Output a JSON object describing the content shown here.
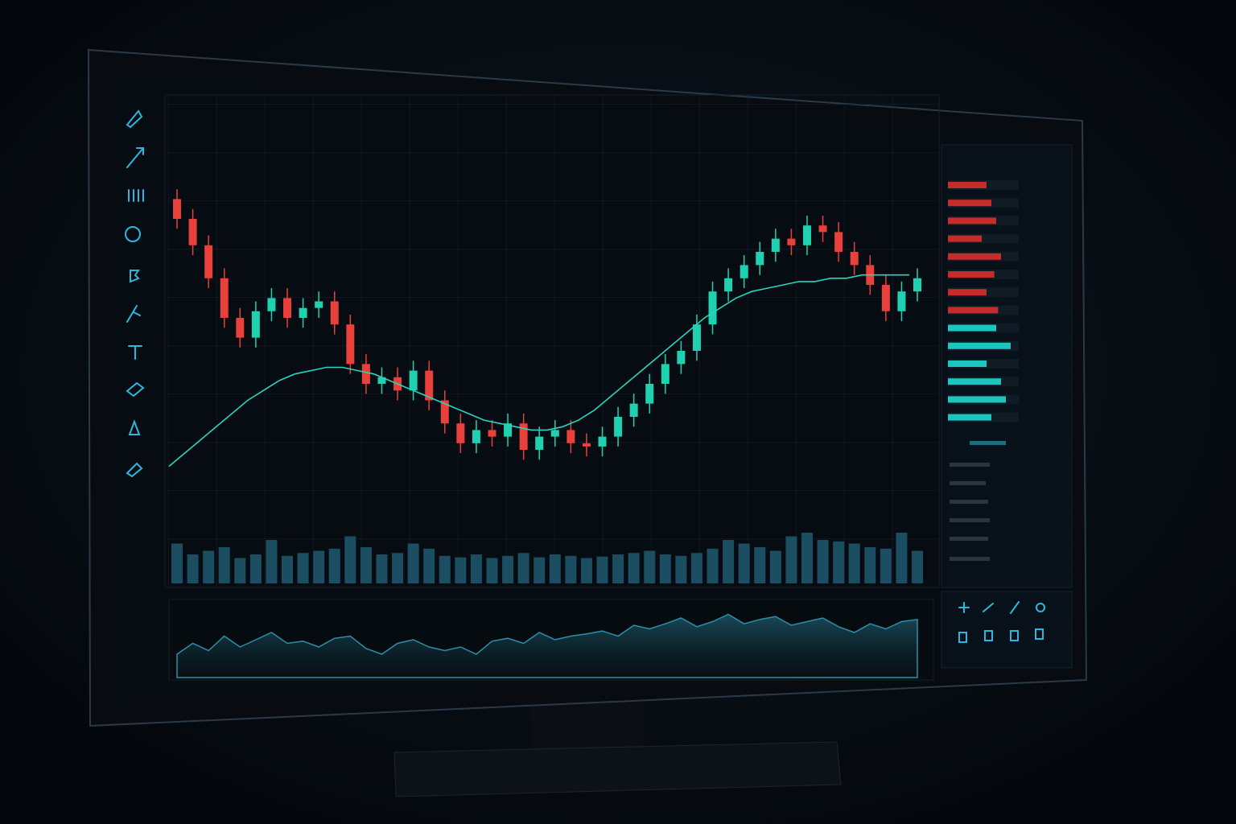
{
  "chart_data": [
    {
      "type": "candlestick",
      "ylim": [
        0,
        100
      ],
      "up_color": "#1fd1b0",
      "down_color": "#e8403a",
      "ma_color": "#2ad4c0",
      "volume_color": "#1d5a6e",
      "open": [
        86,
        80,
        72,
        62,
        50,
        44,
        52,
        56,
        50,
        53,
        55,
        48,
        36,
        30,
        32,
        28,
        34,
        25,
        18,
        12,
        16,
        14,
        18,
        10,
        14,
        16,
        12,
        11,
        14,
        20,
        24,
        30,
        36,
        40,
        48,
        58,
        62,
        66,
        70,
        74,
        72,
        78,
        76,
        70,
        66,
        60,
        52,
        58
      ],
      "high": [
        89,
        83,
        75,
        65,
        53,
        55,
        59,
        59,
        56,
        58,
        58,
        51,
        39,
        35,
        35,
        37,
        37,
        28,
        21,
        19,
        19,
        21,
        21,
        17,
        19,
        19,
        15,
        17,
        23,
        27,
        33,
        39,
        43,
        51,
        61,
        65,
        69,
        73,
        77,
        77,
        81,
        81,
        79,
        73,
        69,
        63,
        61,
        65
      ],
      "low": [
        77,
        69,
        59,
        47,
        41,
        41,
        49,
        47,
        47,
        50,
        45,
        33,
        27,
        27,
        25,
        25,
        22,
        15,
        9,
        9,
        11,
        11,
        7,
        7,
        11,
        9,
        8,
        8,
        11,
        17,
        21,
        27,
        33,
        37,
        45,
        55,
        59,
        63,
        67,
        69,
        69,
        73,
        67,
        63,
        57,
        49,
        49,
        55
      ],
      "close": [
        80,
        72,
        62,
        50,
        44,
        52,
        56,
        50,
        53,
        55,
        48,
        36,
        30,
        32,
        28,
        34,
        25,
        18,
        12,
        16,
        14,
        18,
        10,
        14,
        16,
        12,
        11,
        14,
        20,
        24,
        30,
        36,
        40,
        48,
        58,
        62,
        66,
        70,
        74,
        72,
        78,
        76,
        70,
        66,
        60,
        52,
        58,
        62
      ],
      "ma": [
        5,
        9,
        13,
        17,
        21,
        25,
        28,
        31,
        33,
        34,
        35,
        35,
        34,
        33,
        31,
        29,
        27,
        25,
        23,
        21,
        19,
        18,
        17,
        16,
        16,
        17,
        19,
        22,
        26,
        30,
        34,
        38,
        42,
        46,
        50,
        53,
        56,
        58,
        59,
        60,
        61,
        61,
        62,
        62,
        63,
        63,
        63,
        63
      ],
      "volume": [
        55,
        40,
        45,
        50,
        35,
        40,
        60,
        38,
        42,
        45,
        48,
        65,
        50,
        40,
        42,
        55,
        48,
        38,
        36,
        40,
        35,
        38,
        42,
        36,
        40,
        38,
        35,
        37,
        40,
        42,
        45,
        40,
        38,
        42,
        48,
        60,
        55,
        50,
        45,
        65,
        70,
        60,
        58,
        55,
        50,
        48,
        70,
        45
      ],
      "oscillator": [
        30,
        45,
        35,
        55,
        40,
        50,
        60,
        45,
        48,
        40,
        52,
        55,
        38,
        30,
        45,
        50,
        40,
        35,
        40,
        30,
        48,
        52,
        45,
        60,
        50,
        55,
        58,
        62,
        55,
        70,
        65,
        72,
        80,
        68,
        75,
        85,
        72,
        78,
        82,
        70,
        75,
        80,
        68,
        60,
        72,
        65,
        75,
        78
      ]
    },
    {
      "type": "bar",
      "series": [
        {
          "color": "#d8302c",
          "values": [
            40,
            45,
            50,
            35,
            55,
            48,
            40,
            52
          ]
        },
        {
          "color": "#1fd8d0",
          "values": [
            50,
            65,
            40,
            55,
            60,
            45
          ]
        }
      ]
    }
  ]
}
